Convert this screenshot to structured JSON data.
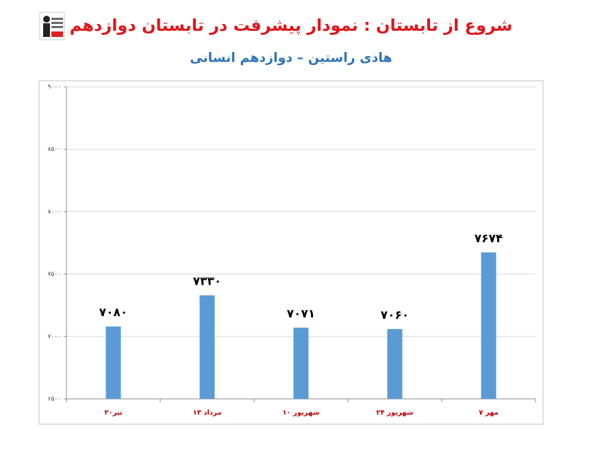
{
  "chart_data": {
    "type": "bar",
    "title": "شروع از تابستان : نمودار پیشرفت در تابستان دوازدهم",
    "subtitle": "هادی راستین – دوازدهم انسانی",
    "categories": [
      "۳۰تیر",
      "۱۳ مرداد",
      "۱۰ شهریور",
      "۲۴ شهریور",
      "۷ مهر"
    ],
    "values": [
      7080,
      7330,
      7071,
      7060,
      7674
    ],
    "value_labels": [
      "۷۰۸۰",
      "۷۳۳۰",
      "۷۰۷۱",
      "۷۰۶۰",
      "۷۶۷۴"
    ],
    "color": "#5b9bd5",
    "ylim": [
      6500,
      9000
    ],
    "yticks": [
      {
        "value": 6500,
        "label": "۶۵۰۰"
      },
      {
        "value": 7000,
        "label": "۷۰۰۰"
      },
      {
        "value": 7500,
        "label": "۷۵۰۰"
      },
      {
        "value": 8000,
        "label": "۸۰۰۰"
      },
      {
        "value": 8500,
        "label": "۸۵۰۰"
      },
      {
        "value": 9000,
        "label": "۹۰۰۰"
      }
    ],
    "grid": true
  }
}
